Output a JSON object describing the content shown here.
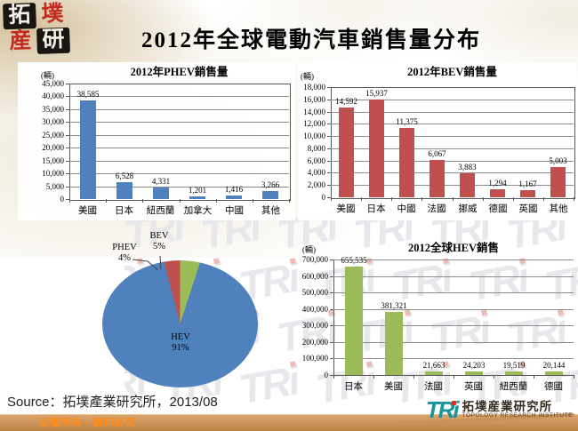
{
  "title": "2012年全球電動汽車銷售量分布",
  "source": "Source：拓墣產業研究所，2013/08",
  "branding": {
    "seal_chars": [
      "拓",
      "墣",
      "産",
      "研"
    ],
    "watermark_text": "TRi",
    "footer_logo": {
      "mark": "TRi",
      "name_cn": "拓墣産業研究所",
      "name_en": "TOPOLOGY RESEARCH INSTITUTE"
    },
    "copyright": "版權所有 ▪ 翻印必究"
  },
  "colors": {
    "bar_blue": "#4F81BD",
    "bar_red": "#C0504D",
    "bar_green": "#9BBB59",
    "footer_bar_tan": "#C9915C",
    "copyright_text": "#FF8C1C",
    "tri_teal": "#17969C",
    "tri_dot_red": "#D93025",
    "seal_red": "#C32A1E"
  },
  "chart_data": [
    {
      "type": "bar",
      "title": "2012年PHEV銷售量",
      "unit_label": "(輛)",
      "categories": [
        "美國",
        "日本",
        "紐西蘭",
        "加拿大",
        "中國",
        "其他"
      ],
      "values": [
        38585,
        6528,
        4331,
        1201,
        1416,
        3266
      ],
      "data_labels": [
        "38,585",
        "6,528",
        "4,331",
        "1,201",
        "1,416",
        "3,266"
      ],
      "ymax": 45000,
      "yticks": [
        "45,000",
        "40,000",
        "35,000",
        "30,000",
        "25,000",
        "20,000",
        "15,000",
        "10,000",
        "5,000",
        "0"
      ],
      "bar_color": "#4F81BD",
      "grid": true,
      "legend": false
    },
    {
      "type": "bar",
      "title": "2012年BEV銷售量",
      "unit_label": "(輛)",
      "categories": [
        "美國",
        "日本",
        "中國",
        "法國",
        "挪威",
        "德國",
        "英國",
        "其他"
      ],
      "values": [
        14592,
        15937,
        11375,
        6067,
        3883,
        1294,
        1167,
        5003
      ],
      "data_labels": [
        "14,592",
        "15,937",
        "11,375",
        "6,067",
        "3,883",
        "1,294",
        "1,167",
        "5,003"
      ],
      "ymax": 18000,
      "yticks": [
        "18,000",
        "16,000",
        "14,000",
        "12,000",
        "10,000",
        "8,000",
        "6,000",
        "4,000",
        "2,000",
        "0"
      ],
      "bar_color": "#C0504D",
      "grid": true,
      "legend": false
    },
    {
      "type": "pie",
      "title": "",
      "direction": "clockwise",
      "start_angle_deg": 0,
      "slices": [
        {
          "label": "BEV",
          "pct": 5,
          "pct_label": "5%",
          "color": "#9BBB59"
        },
        {
          "label": "HEV",
          "pct": 91,
          "pct_label": "91%",
          "color": "#4F81BD"
        },
        {
          "label": "PHEV",
          "pct": 4,
          "pct_label": "4%",
          "color": "#C0504D"
        }
      ]
    },
    {
      "type": "bar",
      "title": "2012全球HEV銷售",
      "unit_label": "(輛)",
      "categories": [
        "日本",
        "美國",
        "法國",
        "英國",
        "紐西蘭",
        "德國"
      ],
      "values": [
        655535,
        381321,
        21663,
        24203,
        19519,
        20144
      ],
      "data_labels": [
        "655,535",
        "381,321",
        "21,663",
        "24,203",
        "19,519",
        "20,144"
      ],
      "ymax": 700000,
      "yticks": [
        "700,000",
        "600,000",
        "500,000",
        "400,000",
        "300,000",
        "200,000",
        "100,000",
        "0"
      ],
      "bar_color": "#9BBB59",
      "grid": true,
      "legend": false
    }
  ]
}
